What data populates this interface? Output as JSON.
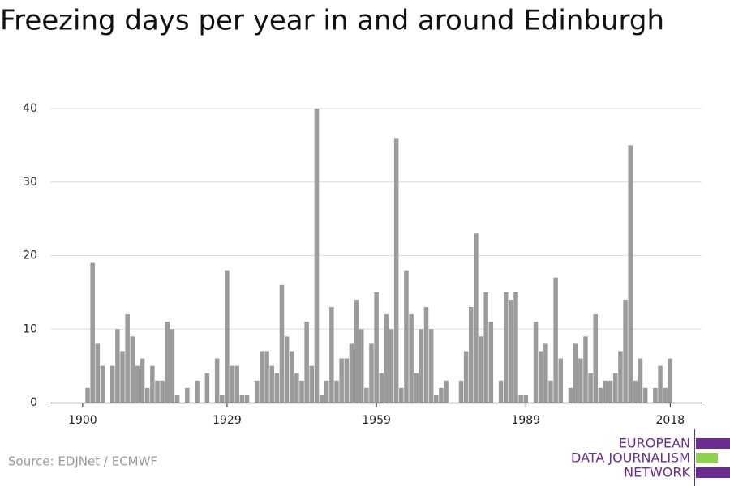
{
  "chart_data": {
    "type": "bar",
    "title": "Freezing days per year in and around Edinburgh",
    "source": "Source: EDJNet / ECMWF",
    "logo": [
      "EUROPEAN",
      "DATA JOURNALISM",
      "NETWORK"
    ],
    "x": [
      1900,
      1901,
      1902,
      1903,
      1904,
      1905,
      1906,
      1907,
      1908,
      1909,
      1910,
      1911,
      1912,
      1913,
      1914,
      1915,
      1916,
      1917,
      1918,
      1919,
      1920,
      1921,
      1922,
      1923,
      1924,
      1925,
      1926,
      1927,
      1928,
      1929,
      1930,
      1931,
      1932,
      1933,
      1934,
      1935,
      1936,
      1937,
      1938,
      1939,
      1940,
      1941,
      1942,
      1943,
      1944,
      1945,
      1946,
      1947,
      1948,
      1949,
      1950,
      1951,
      1952,
      1953,
      1954,
      1955,
      1956,
      1957,
      1958,
      1959,
      1960,
      1961,
      1962,
      1963,
      1964,
      1965,
      1966,
      1967,
      1968,
      1969,
      1970,
      1971,
      1972,
      1973,
      1974,
      1975,
      1976,
      1977,
      1978,
      1979,
      1980,
      1981,
      1982,
      1983,
      1984,
      1985,
      1986,
      1987,
      1988,
      1989,
      1990,
      1991,
      1992,
      1993,
      1994,
      1995,
      1996,
      1997,
      1998,
      1999,
      2000,
      2001,
      2002,
      2003,
      2004,
      2005,
      2006,
      2007,
      2008,
      2009,
      2010,
      2011,
      2012,
      2013,
      2014,
      2015,
      2016,
      2017,
      2018
    ],
    "values": [
      0,
      2,
      19,
      8,
      5,
      0,
      5,
      10,
      7,
      12,
      9,
      5,
      6,
      2,
      5,
      3,
      3,
      11,
      10,
      1,
      0,
      2,
      0,
      3,
      0,
      4,
      0,
      6,
      1,
      18,
      5,
      5,
      1,
      1,
      0,
      3,
      7,
      7,
      5,
      4,
      16,
      9,
      7,
      4,
      3,
      11,
      5,
      40,
      1,
      3,
      13,
      3,
      6,
      6,
      8,
      14,
      10,
      2,
      8,
      15,
      4,
      12,
      10,
      36,
      2,
      18,
      12,
      4,
      10,
      13,
      10,
      1,
      2,
      3,
      0,
      0,
      3,
      7,
      13,
      23,
      9,
      15,
      11,
      0,
      3,
      15,
      14,
      15,
      1,
      1,
      0,
      11,
      7,
      8,
      3,
      17,
      6,
      0,
      2,
      8,
      6,
      9,
      4,
      12,
      2,
      3,
      3,
      4,
      7,
      14,
      35,
      3,
      6,
      2,
      0,
      2,
      5,
      2,
      6
    ],
    "color": "#9b9b9b",
    "xlim": [
      1893.5,
      2024.3
    ],
    "xticks": [
      1900,
      1929,
      1959,
      1989,
      2018
    ],
    "ylim": [
      0,
      40
    ],
    "yticks": [
      0,
      10,
      20,
      30,
      40
    ],
    "grid": true
  }
}
